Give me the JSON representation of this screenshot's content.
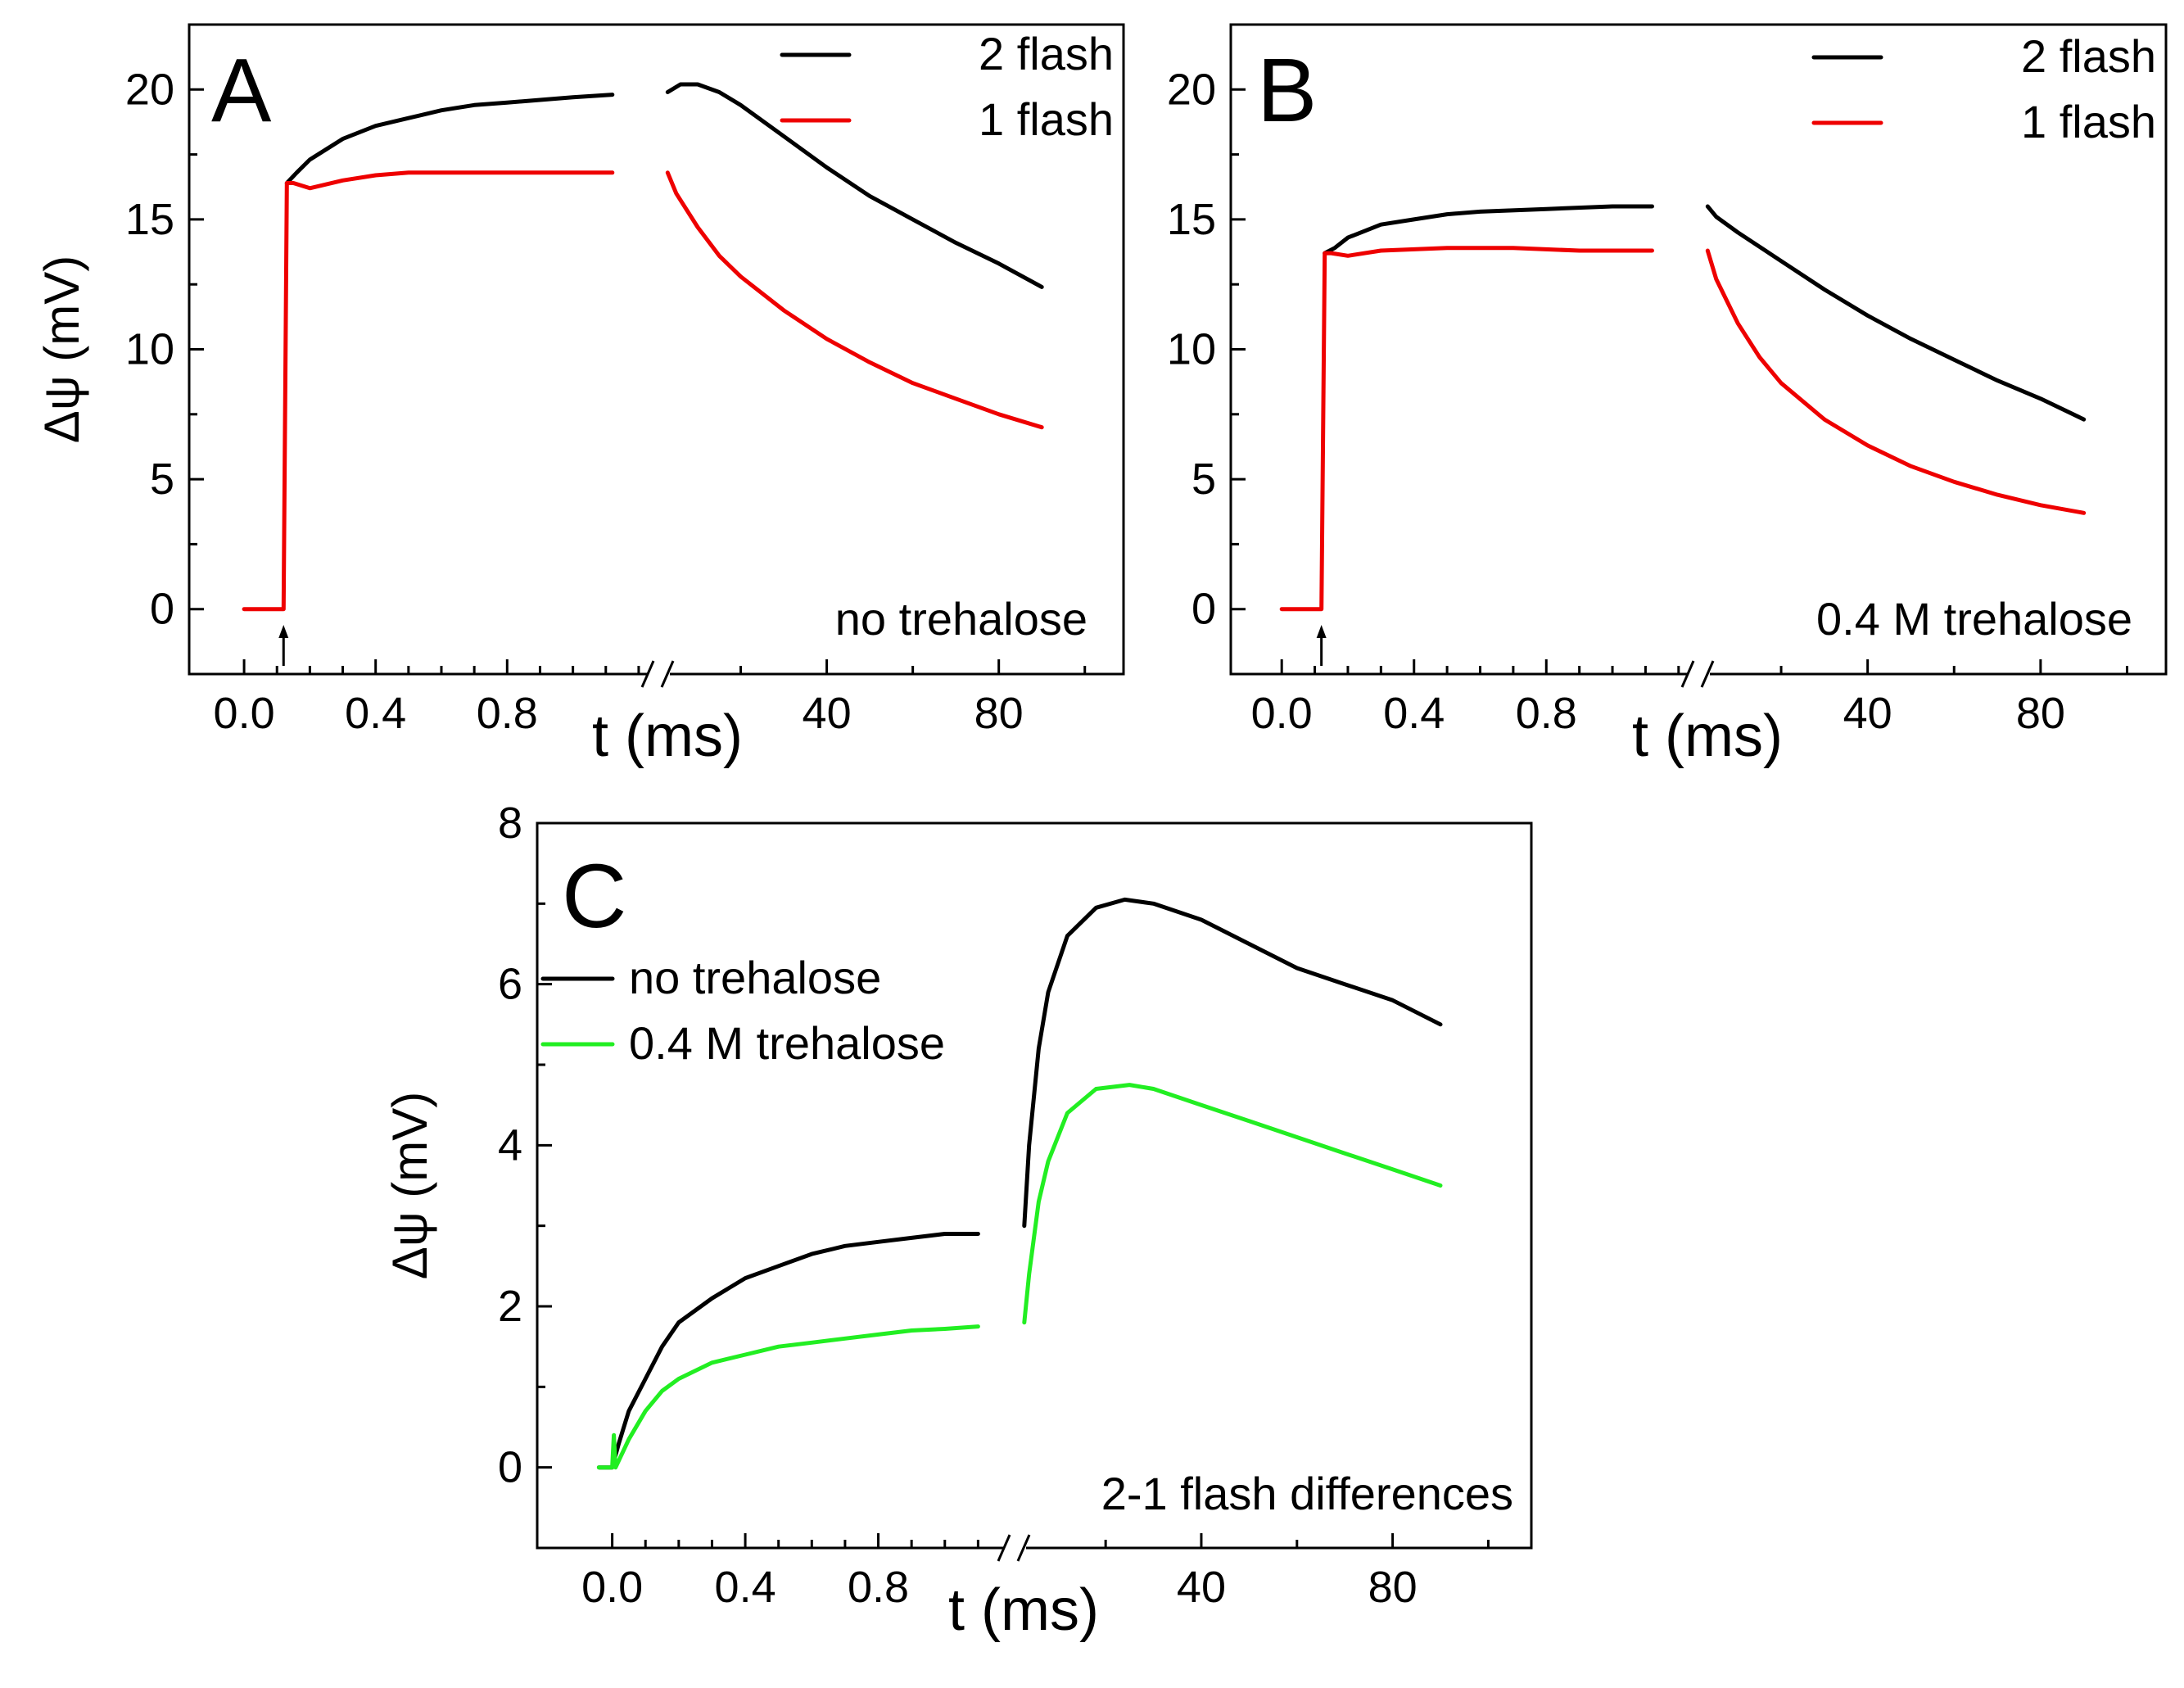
{
  "chart_data": [
    {
      "type": "line",
      "panel": "A",
      "xlabel": "t (ms)",
      "ylabel": "Δψ (mV)",
      "ylim": [
        -2.5,
        22.5
      ],
      "yticks": [
        0,
        5,
        10,
        15,
        20
      ],
      "xlim_left": [
        -0.05,
        1.25
      ],
      "xlim_right": [
        2,
        109
      ],
      "xticks_left": [
        "0.0",
        "0.4",
        "0.8"
      ],
      "xticks_right": [
        "40",
        "80"
      ],
      "legend": "top-right",
      "annotation": "no trehalose",
      "marker": "arrow at flash onset",
      "series": [
        {
          "name": "2 flash",
          "color": "#000000",
          "left": [
            [
              0.13,
              16.4
            ],
            [
              0.16,
              16.8
            ],
            [
              0.2,
              17.3
            ],
            [
              0.3,
              18.1
            ],
            [
              0.4,
              18.6
            ],
            [
              0.5,
              18.9
            ],
            [
              0.6,
              19.2
            ],
            [
              0.7,
              19.4
            ],
            [
              0.8,
              19.5
            ],
            [
              0.9,
              19.6
            ],
            [
              1.0,
              19.7
            ],
            [
              1.12,
              19.8
            ]
          ],
          "right": [
            [
              3,
              19.9
            ],
            [
              6,
              20.2
            ],
            [
              10,
              20.2
            ],
            [
              15,
              19.9
            ],
            [
              20,
              19.4
            ],
            [
              30,
              18.2
            ],
            [
              40,
              17.0
            ],
            [
              50,
              15.9
            ],
            [
              60,
              15.0
            ],
            [
              70,
              14.1
            ],
            [
              80,
              13.3
            ],
            [
              90,
              12.4
            ]
          ]
        },
        {
          "name": "1 flash",
          "color": "#ee0000",
          "left": [
            [
              0.0,
              0.0
            ],
            [
              0.12,
              0.0
            ],
            [
              0.13,
              16.4
            ],
            [
              0.15,
              16.4
            ],
            [
              0.2,
              16.2
            ],
            [
              0.3,
              16.5
            ],
            [
              0.4,
              16.7
            ],
            [
              0.5,
              16.8
            ],
            [
              0.6,
              16.8
            ],
            [
              0.8,
              16.8
            ],
            [
              1.0,
              16.8
            ],
            [
              1.12,
              16.8
            ]
          ],
          "right": [
            [
              3,
              16.8
            ],
            [
              5,
              16.0
            ],
            [
              10,
              14.7
            ],
            [
              15,
              13.6
            ],
            [
              20,
              12.8
            ],
            [
              30,
              11.5
            ],
            [
              40,
              10.4
            ],
            [
              50,
              9.5
            ],
            [
              60,
              8.7
            ],
            [
              70,
              8.1
            ],
            [
              80,
              7.5
            ],
            [
              90,
              7.0
            ]
          ]
        }
      ]
    },
    {
      "type": "line",
      "panel": "B",
      "xlabel": "t (ms)",
      "ylabel": "",
      "ylim": [
        -2.5,
        22.5
      ],
      "yticks": [
        0,
        5,
        10,
        15,
        20
      ],
      "xlim_left": [
        -0.05,
        1.25
      ],
      "xlim_right": [
        2,
        109
      ],
      "xticks_left": [
        "0.0",
        "0.4",
        "0.8"
      ],
      "xticks_right": [
        "40",
        "80"
      ],
      "legend": "top-right",
      "annotation": "0.4 M trehalose",
      "marker": "arrow at flash onset",
      "series": [
        {
          "name": "2 flash",
          "color": "#000000",
          "left": [
            [
              0.13,
              13.7
            ],
            [
              0.16,
              13.9
            ],
            [
              0.2,
              14.3
            ],
            [
              0.3,
              14.8
            ],
            [
              0.4,
              15.0
            ],
            [
              0.5,
              15.2
            ],
            [
              0.6,
              15.3
            ],
            [
              0.8,
              15.4
            ],
            [
              1.0,
              15.5
            ],
            [
              1.12,
              15.5
            ]
          ],
          "right": [
            [
              3,
              15.5
            ],
            [
              5,
              15.1
            ],
            [
              10,
              14.5
            ],
            [
              20,
              13.4
            ],
            [
              30,
              12.3
            ],
            [
              40,
              11.3
            ],
            [
              50,
              10.4
            ],
            [
              60,
              9.6
            ],
            [
              70,
              8.8
            ],
            [
              80,
              8.1
            ],
            [
              90,
              7.3
            ]
          ]
        },
        {
          "name": "1 flash",
          "color": "#ee0000",
          "left": [
            [
              0.0,
              0.0
            ],
            [
              0.12,
              0.0
            ],
            [
              0.13,
              13.7
            ],
            [
              0.15,
              13.7
            ],
            [
              0.2,
              13.6
            ],
            [
              0.3,
              13.8
            ],
            [
              0.5,
              13.9
            ],
            [
              0.7,
              13.9
            ],
            [
              0.9,
              13.8
            ],
            [
              1.12,
              13.8
            ]
          ],
          "right": [
            [
              3,
              13.8
            ],
            [
              5,
              12.7
            ],
            [
              10,
              11.0
            ],
            [
              15,
              9.7
            ],
            [
              20,
              8.7
            ],
            [
              30,
              7.3
            ],
            [
              40,
              6.3
            ],
            [
              50,
              5.5
            ],
            [
              60,
              4.9
            ],
            [
              70,
              4.4
            ],
            [
              80,
              4.0
            ],
            [
              90,
              3.7
            ]
          ]
        }
      ]
    },
    {
      "type": "line",
      "panel": "C",
      "xlabel": "t (ms)",
      "ylabel": "Δψ (mV)",
      "ylim": [
        -1,
        8
      ],
      "yticks": [
        0,
        2,
        4,
        6,
        8
      ],
      "xlim_left": [
        -0.1,
        1.2
      ],
      "xlim_right": [
        2,
        109
      ],
      "xticks_left": [
        "0.0",
        "0.4",
        "0.8"
      ],
      "xticks_right": [
        "40",
        "80"
      ],
      "legend": "upper-left",
      "annotation": "2-1 flash differences",
      "series": [
        {
          "name": "no trehalose",
          "color": "#000000",
          "left": [
            [
              -0.04,
              0.0
            ],
            [
              0.0,
              0.0
            ],
            [
              0.02,
              0.3
            ],
            [
              0.05,
              0.7
            ],
            [
              0.1,
              1.1
            ],
            [
              0.15,
              1.5
            ],
            [
              0.2,
              1.8
            ],
            [
              0.3,
              2.1
            ],
            [
              0.4,
              2.35
            ],
            [
              0.5,
              2.5
            ],
            [
              0.6,
              2.65
            ],
            [
              0.7,
              2.75
            ],
            [
              0.8,
              2.8
            ],
            [
              0.9,
              2.85
            ],
            [
              1.0,
              2.9
            ],
            [
              1.1,
              2.9
            ]
          ],
          "right": [
            [
              3,
              3.0
            ],
            [
              4,
              4.0
            ],
            [
              6,
              5.2
            ],
            [
              8,
              5.9
            ],
            [
              12,
              6.6
            ],
            [
              18,
              6.95
            ],
            [
              24,
              7.05
            ],
            [
              30,
              7.0
            ],
            [
              40,
              6.8
            ],
            [
              50,
              6.5
            ],
            [
              60,
              6.2
            ],
            [
              70,
              6.0
            ],
            [
              80,
              5.8
            ],
            [
              90,
              5.5
            ]
          ]
        },
        {
          "name": "0.4 M trehalose",
          "color": "#22ee22",
          "left": [
            [
              -0.04,
              0.0
            ],
            [
              0.0,
              0.0
            ],
            [
              0.005,
              0.4
            ],
            [
              0.01,
              0.0
            ],
            [
              0.05,
              0.35
            ],
            [
              0.1,
              0.7
            ],
            [
              0.15,
              0.95
            ],
            [
              0.2,
              1.1
            ],
            [
              0.3,
              1.3
            ],
            [
              0.4,
              1.4
            ],
            [
              0.5,
              1.5
            ],
            [
              0.6,
              1.55
            ],
            [
              0.7,
              1.6
            ],
            [
              0.8,
              1.65
            ],
            [
              0.9,
              1.7
            ],
            [
              1.0,
              1.72
            ],
            [
              1.1,
              1.75
            ]
          ],
          "right": [
            [
              3,
              1.8
            ],
            [
              4,
              2.4
            ],
            [
              6,
              3.3
            ],
            [
              8,
              3.8
            ],
            [
              12,
              4.4
            ],
            [
              18,
              4.7
            ],
            [
              25,
              4.75
            ],
            [
              30,
              4.7
            ],
            [
              40,
              4.5
            ],
            [
              50,
              4.3
            ],
            [
              60,
              4.1
            ],
            [
              70,
              3.9
            ],
            [
              80,
              3.7
            ],
            [
              90,
              3.5
            ]
          ]
        }
      ]
    }
  ]
}
